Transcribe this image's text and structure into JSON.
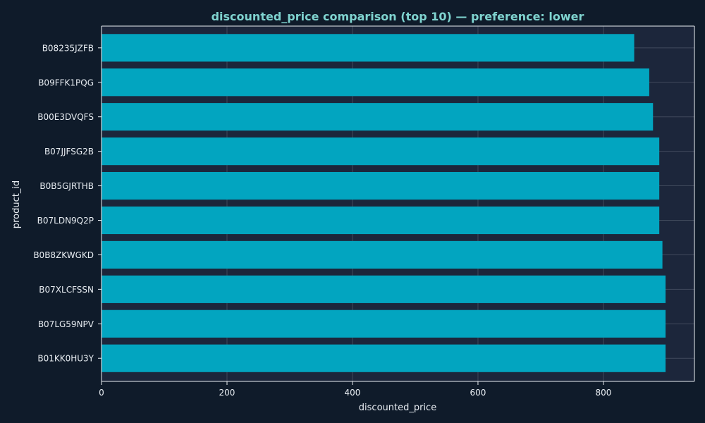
{
  "colors": {
    "figure_bg": "#0f1b2a",
    "plot_bg": "#1c263b",
    "bar": "#02a5c0",
    "title": "#7fd3cf",
    "text": "#e8edf2",
    "axis": "#e8edf2",
    "grid": "#e8edf2"
  },
  "chart_data": {
    "type": "bar",
    "orientation": "horizontal",
    "title": "discounted_price comparison (top 10) — preference: lower",
    "xlabel": "discounted_price",
    "ylabel": "product_id",
    "xlim": [
      0,
      945
    ],
    "xticks": [
      0,
      200,
      400,
      600,
      800
    ],
    "grid": true,
    "categories": [
      "B08235JZFB",
      "B09FFK1PQG",
      "B00E3DVQFS",
      "B07JJFSG2B",
      "B0B5GJRTHB",
      "B07LDN9Q2P",
      "B0B8ZKWGKD",
      "B07XLCFSSN",
      "B07LG59NPV",
      "B01KK0HU3Y"
    ],
    "values": [
      849,
      873,
      879,
      889,
      889,
      889,
      894,
      899,
      899,
      899
    ]
  }
}
